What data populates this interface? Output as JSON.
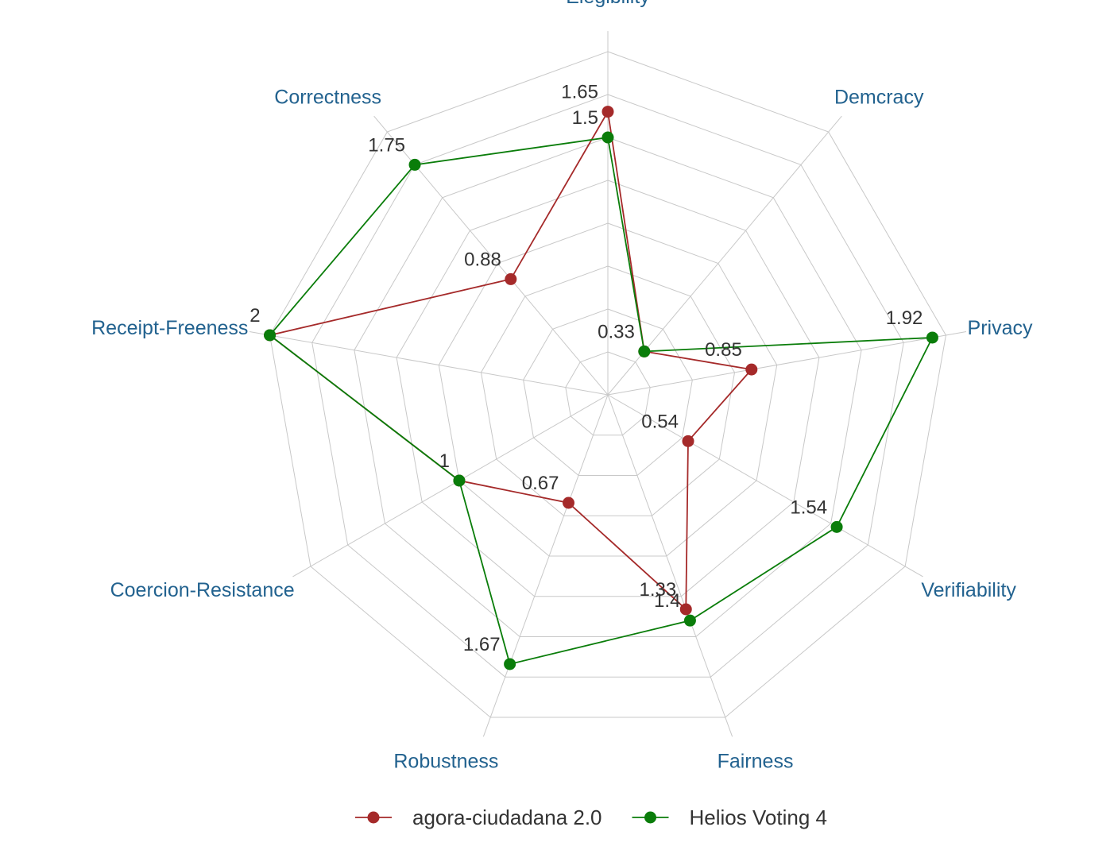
{
  "chart_data": {
    "type": "radar",
    "axes": [
      "Elegibility",
      "Demcracy",
      "Privacy",
      "Verifiability",
      "Fairness",
      "Robustness",
      "Coercion-Resistance",
      "Receipt-Freeness",
      "Correctness"
    ],
    "rlim": [
      0,
      2
    ],
    "rings": 8,
    "grid": true,
    "legend_position": "bottom",
    "colors": {
      "axis_label": "#22628f",
      "grid": "#c8c8c8"
    },
    "series": [
      {
        "name": "agora-ciudadana 2.0",
        "color": "#a52a2a",
        "values": [
          1.65,
          0.33,
          0.85,
          0.54,
          1.33,
          0.67,
          1,
          2,
          0.88
        ],
        "labels": [
          "1.65",
          "0.33",
          "0.85",
          "0.54",
          "1.33",
          "0.67",
          "1",
          "2",
          "0.88"
        ]
      },
      {
        "name": "Helios Voting 4",
        "color": "#0a7d0a",
        "values": [
          1.5,
          0.33,
          1.92,
          1.54,
          1.4,
          1.67,
          1,
          2,
          1.75
        ],
        "labels": [
          "1.5",
          "",
          "1.92",
          "1.54",
          "1.4",
          "1.67",
          "",
          "",
          "1.75"
        ]
      }
    ]
  }
}
